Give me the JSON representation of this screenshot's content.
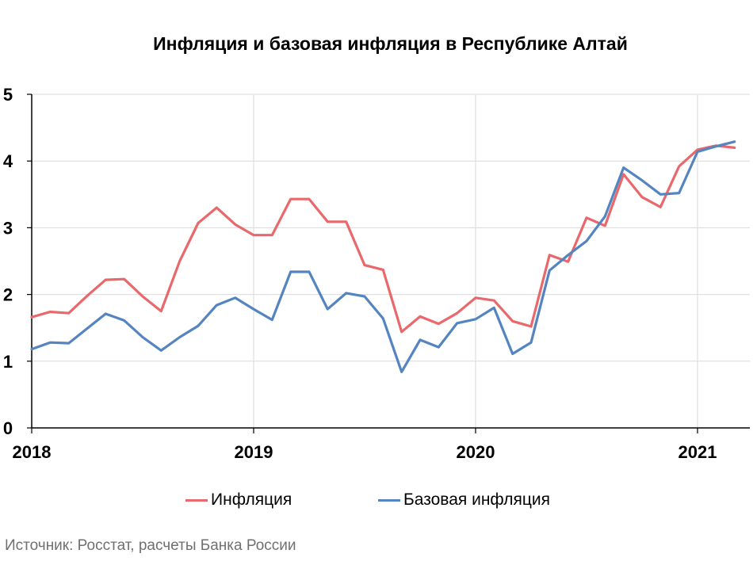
{
  "chart_data": {
    "type": "line",
    "title": "Инфляция и базовая инфляция в Республике Алтай",
    "source": "Источник: Росстат, расчеты Банка России",
    "ylim": [
      0,
      5
    ],
    "yticks": [
      0,
      1,
      2,
      3,
      4,
      5
    ],
    "xlim": [
      2018.0,
      2021.25
    ],
    "xticks": [
      2018,
      2019,
      2020,
      2021
    ],
    "xtick_labels": [
      "2018",
      "2019",
      "2020",
      "2021"
    ],
    "grid": true,
    "legend": "bottom",
    "series": [
      {
        "name": "Инфляция",
        "color": "#e8686b",
        "x": [
          2018.0,
          2018.0833,
          2018.1667,
          2018.25,
          2018.3333,
          2018.4167,
          2018.5,
          2018.5833,
          2018.6667,
          2018.75,
          2018.8333,
          2018.9167,
          2019.0,
          2019.0833,
          2019.1667,
          2019.25,
          2019.3333,
          2019.4167,
          2019.5,
          2019.5833,
          2019.6667,
          2019.75,
          2019.8333,
          2019.9167,
          2020.0,
          2020.0833,
          2020.1667,
          2020.25,
          2020.3333,
          2020.4167,
          2020.5,
          2020.5833,
          2020.6667,
          2020.75,
          2020.8333,
          2020.9167,
          2021.0,
          2021.0833,
          2021.1667
        ],
        "y": [
          1.66,
          1.74,
          1.72,
          1.98,
          2.22,
          2.23,
          1.97,
          1.75,
          2.5,
          3.07,
          3.3,
          3.05,
          2.89,
          2.89,
          3.43,
          3.43,
          3.09,
          3.09,
          2.44,
          2.37,
          1.44,
          1.67,
          1.56,
          1.72,
          1.95,
          1.91,
          1.6,
          1.52,
          2.59,
          2.49,
          3.15,
          3.03,
          3.8,
          3.46,
          3.31,
          3.92,
          4.17,
          4.23,
          4.2
        ]
      },
      {
        "name": "Базовая инфляция",
        "color": "#5485c1",
        "x": [
          2018.0,
          2018.0833,
          2018.1667,
          2018.25,
          2018.3333,
          2018.4167,
          2018.5,
          2018.5833,
          2018.6667,
          2018.75,
          2018.8333,
          2018.9167,
          2019.0,
          2019.0833,
          2019.1667,
          2019.25,
          2019.3333,
          2019.4167,
          2019.5,
          2019.5833,
          2019.6667,
          2019.75,
          2019.8333,
          2019.9167,
          2020.0,
          2020.0833,
          2020.1667,
          2020.25,
          2020.3333,
          2020.4167,
          2020.5,
          2020.5833,
          2020.6667,
          2020.75,
          2020.8333,
          2020.9167,
          2021.0,
          2021.0833,
          2021.1667
        ],
        "y": [
          1.18,
          1.28,
          1.27,
          1.49,
          1.71,
          1.61,
          1.36,
          1.16,
          1.36,
          1.53,
          1.84,
          1.95,
          1.78,
          1.62,
          2.34,
          2.34,
          1.78,
          2.02,
          1.97,
          1.64,
          0.84,
          1.32,
          1.21,
          1.57,
          1.63,
          1.8,
          1.11,
          1.28,
          2.36,
          2.59,
          2.8,
          3.17,
          3.9,
          3.71,
          3.5,
          3.52,
          4.14,
          4.22,
          4.29
        ]
      }
    ]
  }
}
